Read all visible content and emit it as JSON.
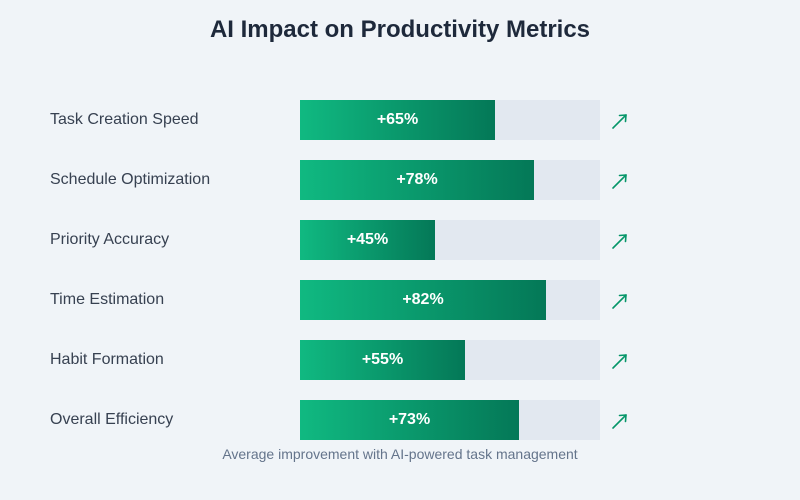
{
  "chart_data": {
    "type": "bar",
    "orientation": "horizontal",
    "title": "AI Impact on Productivity Metrics",
    "caption": "Average improvement with AI-powered task management",
    "xlabel": "",
    "ylabel": "",
    "xlim": [
      0,
      100
    ],
    "unit": "%",
    "grid": false,
    "legend": "none",
    "categories": [
      "Task Creation Speed",
      "Schedule Optimization",
      "Priority Accuracy",
      "Time Estimation",
      "Habit Formation",
      "Overall Efficiency"
    ],
    "values": [
      65,
      78,
      45,
      82,
      55,
      73
    ],
    "value_labels": [
      "+65%",
      "+78%",
      "+45%",
      "+82%",
      "+55%",
      "+73%"
    ],
    "trend_icon": "arrow-up-right-icon",
    "colors": {
      "bar_start": "#10b981",
      "bar_end": "#047857",
      "track": "#e2e8f0",
      "trend": "#059669"
    }
  }
}
